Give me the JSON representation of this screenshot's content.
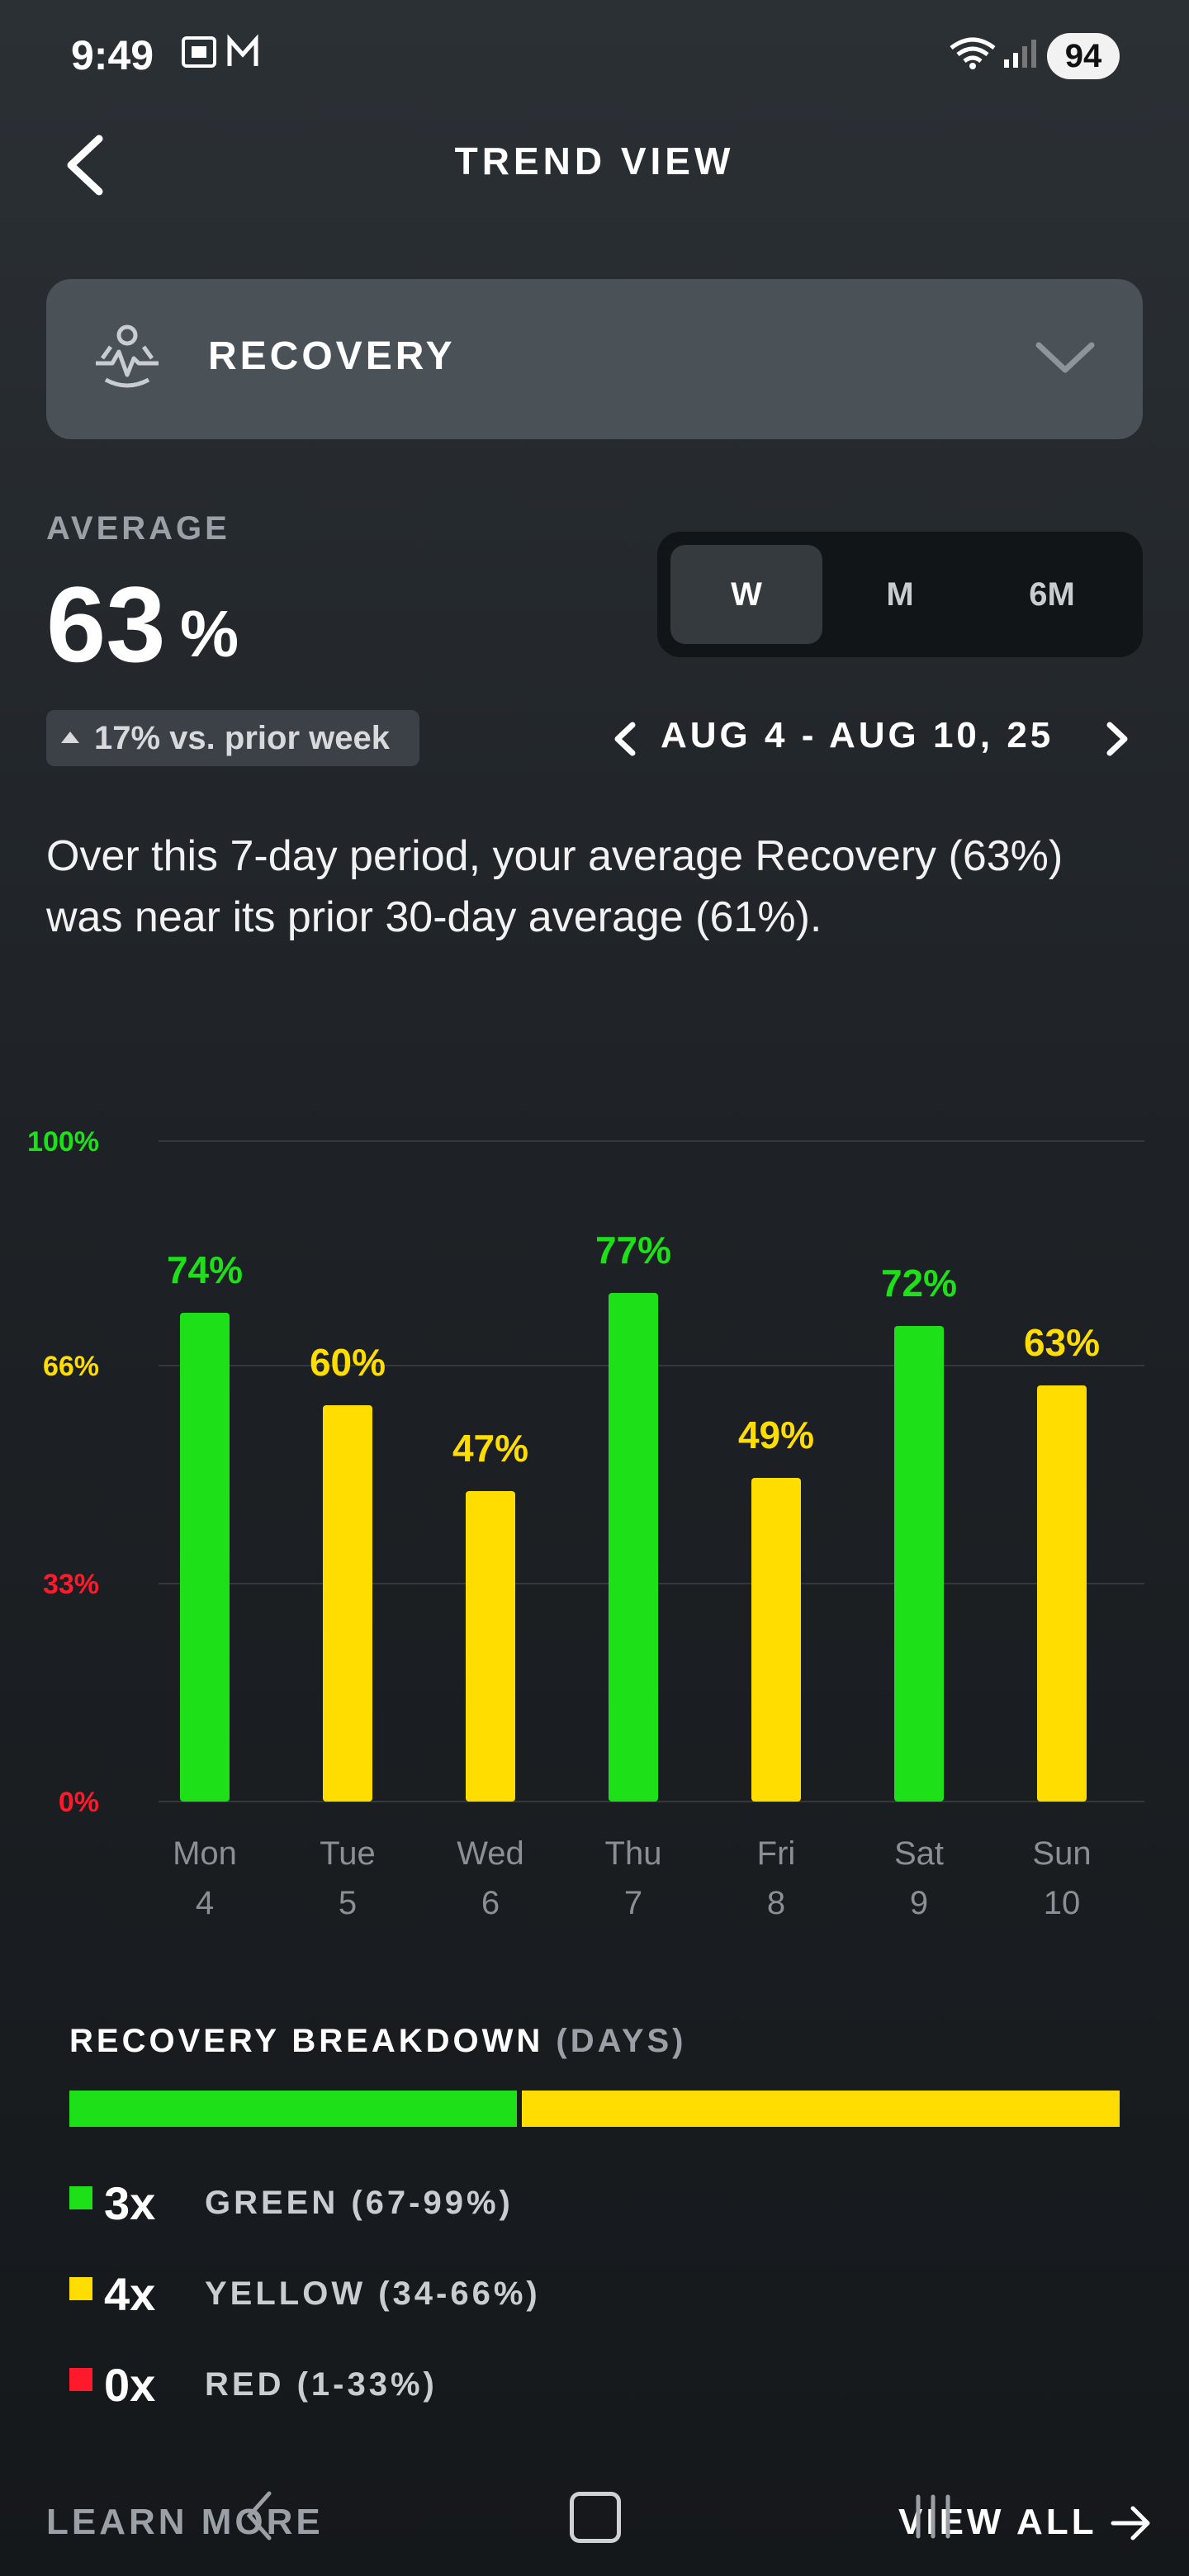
{
  "status_bar": {
    "time": "9:49",
    "battery": "94"
  },
  "header": {
    "title": "TREND VIEW"
  },
  "metric_selector": {
    "label": "RECOVERY"
  },
  "average": {
    "label": "AVERAGE",
    "value": "63",
    "unit": "%",
    "delta": "17% vs. prior week"
  },
  "period_toggle": {
    "options": [
      "W",
      "M",
      "6M"
    ],
    "selected": "W"
  },
  "date_range": "AUG 4 - AUG 10, 25",
  "summary": "Over this 7-day period, your average Recovery (63%) was near its prior 30-day average (61%).",
  "colors": {
    "green": "#1de019",
    "yellow": "#ffdd00",
    "red": "#ff1a2b",
    "background": "#1e2226"
  },
  "chart_data": {
    "type": "bar",
    "categories": [
      "Mon 4",
      "Tue 5",
      "Wed 6",
      "Thu 7",
      "Fri 8",
      "Sat 9",
      "Sun 10"
    ],
    "days": [
      "Mon",
      "Tue",
      "Wed",
      "Thu",
      "Fri",
      "Sat",
      "Sun"
    ],
    "dates": [
      "4",
      "5",
      "6",
      "7",
      "8",
      "9",
      "10"
    ],
    "values": [
      74,
      60,
      47,
      77,
      49,
      72,
      63
    ],
    "value_labels": [
      "74%",
      "60%",
      "47%",
      "77%",
      "49%",
      "72%",
      "63%"
    ],
    "bar_colors": [
      "green",
      "yellow",
      "yellow",
      "green",
      "yellow",
      "green",
      "yellow"
    ],
    "y_ticks": [
      {
        "value": 0,
        "label": "0%",
        "color": "red"
      },
      {
        "value": 33,
        "label": "33%",
        "color": "red"
      },
      {
        "value": 66,
        "label": "66%",
        "color": "yellow"
      },
      {
        "value": 100,
        "label": "100%",
        "color": "green"
      }
    ],
    "ylim": [
      0,
      100
    ],
    "grid": true
  },
  "breakdown": {
    "title": "RECOVERY BREAKDOWN",
    "subtitle": "(DAYS)",
    "items": [
      {
        "count": "3x",
        "label": "GREEN (67-99%)",
        "color": "green",
        "days": 3
      },
      {
        "count": "4x",
        "label": "YELLOW (34-66%)",
        "color": "yellow",
        "days": 4
      },
      {
        "count": "0x",
        "label": "RED (1-33%)",
        "color": "red",
        "days": 0
      }
    ]
  },
  "footer": {
    "learn_more": "LEARN MORE",
    "view_all": "VIEW ALL"
  }
}
